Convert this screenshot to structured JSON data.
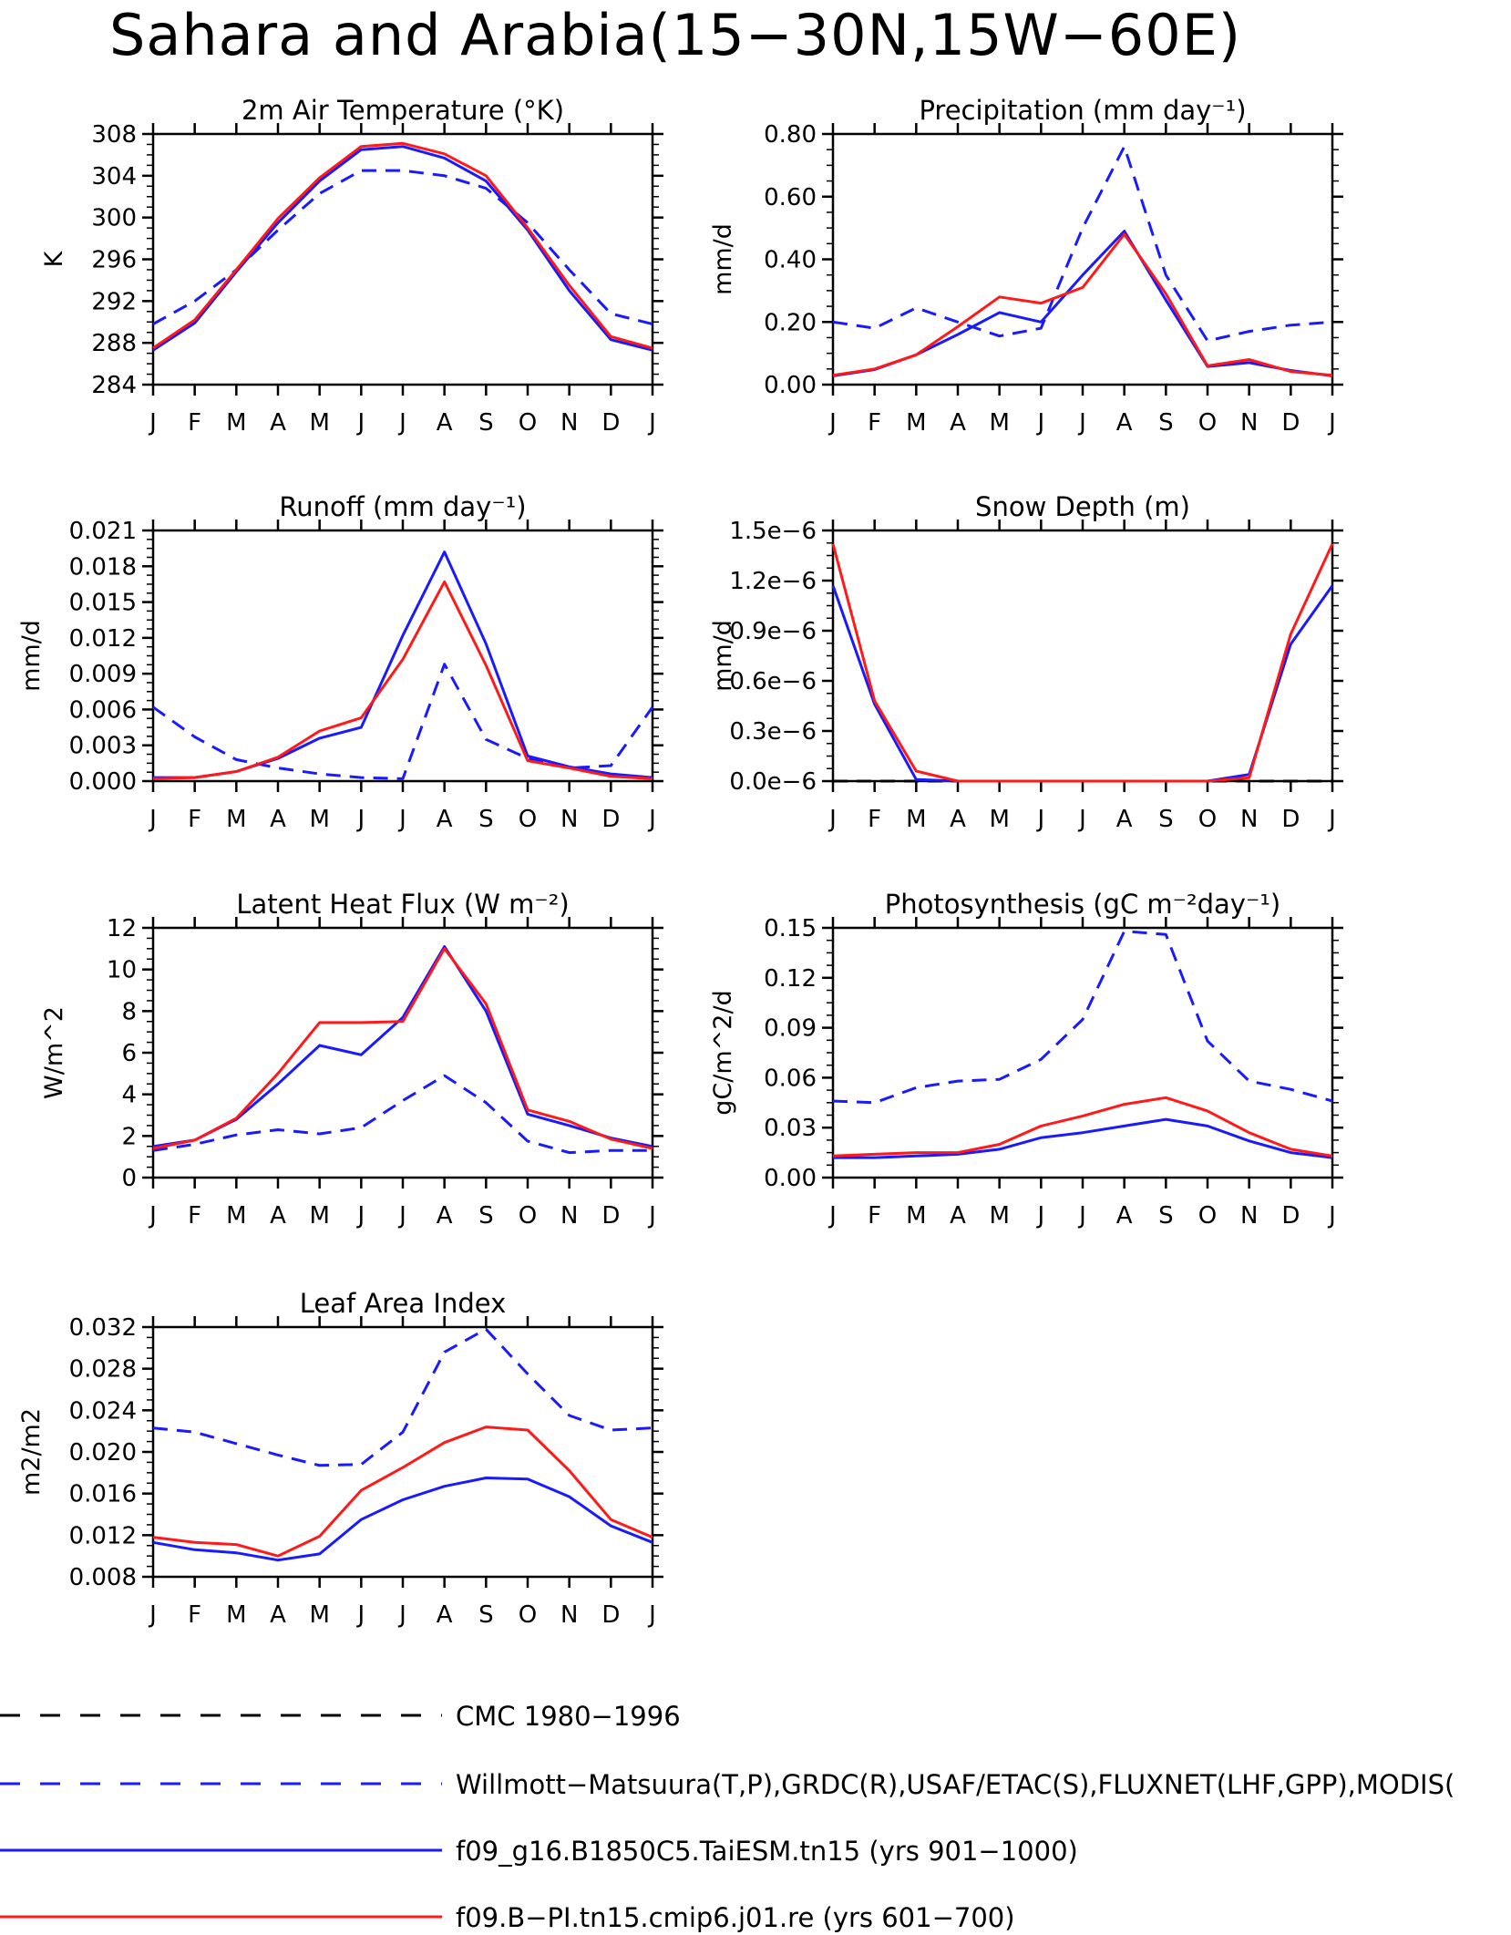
{
  "title": "Sahara and Arabia(15−30N,15W−60E)",
  "colors": {
    "obs": "#1a1aff",
    "model1": "#1a1aff",
    "model2": "#ff1a1a",
    "cmc": "#000000"
  },
  "legend": [
    {
      "label": "CMC 1980−1996",
      "color": "#000000",
      "dashed": true
    },
    {
      "label": "Willmott−Matsuura(T,P),GRDC(R),USAF/ETAC(S),FLUXNET(LHF,GPP),MODIS(",
      "color": "#1a1aff",
      "dashed": true
    },
    {
      "label": "f09_g16.B1850C5.TaiESM.tn15 (yrs 901−1000)",
      "color": "#1a1aff",
      "dashed": false
    },
    {
      "label": "f09.B−PI.tn15.cmip6.j01.re (yrs 601−700)",
      "color": "#ff1a1a",
      "dashed": false
    }
  ],
  "chart_data": [
    {
      "type": "line",
      "title": "2m Air Temperature (°K)",
      "ylabel": "K",
      "x": [
        "J",
        "F",
        "M",
        "A",
        "M",
        "J",
        "J",
        "A",
        "S",
        "O",
        "N",
        "D",
        "J"
      ],
      "ylim": [
        284,
        308
      ],
      "yticks": [
        "284",
        "288",
        "292",
        "296",
        "300",
        "304",
        "308"
      ],
      "series": [
        {
          "role": "obs",
          "values": [
            289.8,
            292.0,
            295.0,
            298.8,
            302.3,
            304.5,
            304.5,
            304.0,
            302.8,
            299.5,
            295.0,
            290.8,
            289.8
          ]
        },
        {
          "role": "model1",
          "values": [
            287.3,
            289.9,
            294.8,
            299.5,
            303.5,
            306.5,
            306.8,
            305.7,
            303.5,
            298.8,
            293.0,
            288.3,
            287.3
          ]
        },
        {
          "role": "model2",
          "values": [
            287.5,
            290.2,
            295.0,
            299.9,
            303.8,
            306.8,
            307.1,
            306.1,
            304.0,
            299.0,
            293.5,
            288.6,
            287.5
          ]
        }
      ]
    },
    {
      "type": "line",
      "title": "Precipitation (mm day⁻¹)",
      "ylabel": "mm/d",
      "x": [
        "J",
        "F",
        "M",
        "A",
        "M",
        "J",
        "J",
        "A",
        "S",
        "O",
        "N",
        "D",
        "J"
      ],
      "ylim": [
        0,
        0.8
      ],
      "yticks": [
        "0.00",
        "0.20",
        "0.40",
        "0.60",
        "0.80"
      ],
      "series": [
        {
          "role": "obs",
          "values": [
            0.2,
            0.18,
            0.245,
            0.2,
            0.155,
            0.18,
            0.5,
            0.76,
            0.35,
            0.14,
            0.17,
            0.19,
            0.2
          ]
        },
        {
          "role": "model1",
          "values": [
            0.028,
            0.048,
            0.095,
            0.16,
            0.23,
            0.2,
            0.35,
            0.49,
            0.27,
            0.058,
            0.07,
            0.045,
            0.028
          ]
        },
        {
          "role": "model2",
          "values": [
            0.03,
            0.05,
            0.095,
            0.185,
            0.28,
            0.26,
            0.31,
            0.48,
            0.29,
            0.06,
            0.08,
            0.042,
            0.03
          ]
        }
      ]
    },
    {
      "type": "line",
      "title": "Runoff (mm day⁻¹)",
      "ylabel": "mm/d",
      "x": [
        "J",
        "F",
        "M",
        "A",
        "M",
        "J",
        "J",
        "A",
        "S",
        "O",
        "N",
        "D",
        "J"
      ],
      "ylim": [
        0,
        0.021
      ],
      "yticks": [
        "0.000",
        "0.003",
        "0.006",
        "0.009",
        "0.012",
        "0.015",
        "0.018",
        "0.021"
      ],
      "series": [
        {
          "role": "obs",
          "values": [
            0.0062,
            0.0037,
            0.0018,
            0.0011,
            0.0006,
            0.0003,
            0.0002,
            0.0098,
            0.0035,
            0.0019,
            0.0011,
            0.0013,
            0.0062
          ]
        },
        {
          "role": "model1",
          "values": [
            0.0003,
            0.0003,
            0.0008,
            0.0019,
            0.0036,
            0.0045,
            0.0122,
            0.0192,
            0.0115,
            0.0021,
            0.0012,
            0.0006,
            0.0003
          ]
        },
        {
          "role": "model2",
          "values": [
            0.0002,
            0.0003,
            0.0008,
            0.002,
            0.0042,
            0.0053,
            0.0102,
            0.0167,
            0.0097,
            0.0017,
            0.0011,
            0.0004,
            0.0002
          ]
        }
      ]
    },
    {
      "type": "line",
      "title": "Snow Depth (m)",
      "ylabel": "mm/d",
      "x": [
        "J",
        "F",
        "M",
        "A",
        "M",
        "J",
        "J",
        "A",
        "S",
        "O",
        "N",
        "D",
        "J"
      ],
      "ylim": [
        0,
        1.5
      ],
      "yticks": [
        "0.0e−6",
        "0.3e−6",
        "0.6e−6",
        "0.9e−6",
        "1.2e−6",
        "1.5e−6"
      ],
      "series": [
        {
          "role": "cmc",
          "values": [
            0,
            0,
            0,
            0,
            0,
            0,
            0,
            0,
            0,
            0,
            0,
            0,
            0
          ]
        },
        {
          "role": "model1",
          "values": [
            1.17,
            0.46,
            0.01,
            0,
            0,
            0,
            0,
            0,
            0,
            0,
            0.04,
            0.82,
            1.17
          ]
        },
        {
          "role": "model2",
          "values": [
            1.42,
            0.48,
            0.06,
            0,
            0,
            0,
            0,
            0,
            0,
            0,
            0.02,
            0.88,
            1.42
          ]
        }
      ]
    },
    {
      "type": "line",
      "title": "Latent Heat Flux (W m⁻²)",
      "ylabel": "W/m^2",
      "x": [
        "J",
        "F",
        "M",
        "A",
        "M",
        "J",
        "J",
        "A",
        "S",
        "O",
        "N",
        "D",
        "J"
      ],
      "ylim": [
        0,
        12
      ],
      "yticks": [
        "0",
        "2",
        "4",
        "6",
        "8",
        "10",
        "12"
      ],
      "series": [
        {
          "role": "obs",
          "values": [
            1.3,
            1.6,
            2.05,
            2.3,
            2.1,
            2.4,
            3.7,
            4.9,
            3.6,
            1.75,
            1.2,
            1.3,
            1.3
          ]
        },
        {
          "role": "model1",
          "values": [
            1.5,
            1.8,
            2.8,
            4.5,
            6.35,
            5.9,
            7.7,
            11.1,
            8.0,
            3.05,
            2.5,
            1.9,
            1.5
          ]
        },
        {
          "role": "model2",
          "values": [
            1.4,
            1.8,
            2.85,
            5.0,
            7.45,
            7.45,
            7.5,
            11.0,
            8.35,
            3.25,
            2.7,
            1.85,
            1.4
          ]
        }
      ]
    },
    {
      "type": "line",
      "title": "Photosynthesis (gC m⁻²day⁻¹)",
      "ylabel": "gC/m^2/d",
      "x": [
        "J",
        "F",
        "M",
        "A",
        "M",
        "J",
        "J",
        "A",
        "S",
        "O",
        "N",
        "D",
        "J"
      ],
      "ylim": [
        0,
        0.15
      ],
      "yticks": [
        "0.00",
        "0.03",
        "0.06",
        "0.09",
        "0.12",
        "0.15"
      ],
      "series": [
        {
          "role": "obs",
          "values": [
            0.046,
            0.045,
            0.054,
            0.058,
            0.059,
            0.071,
            0.095,
            0.148,
            0.146,
            0.082,
            0.058,
            0.053,
            0.046
          ]
        },
        {
          "role": "model1",
          "values": [
            0.012,
            0.012,
            0.013,
            0.014,
            0.017,
            0.024,
            0.027,
            0.031,
            0.035,
            0.031,
            0.022,
            0.015,
            0.012
          ]
        },
        {
          "role": "model2",
          "values": [
            0.013,
            0.014,
            0.015,
            0.015,
            0.02,
            0.031,
            0.037,
            0.044,
            0.048,
            0.04,
            0.027,
            0.017,
            0.013
          ]
        }
      ]
    },
    {
      "type": "line",
      "title": "Leaf Area Index",
      "ylabel": "m2/m2",
      "x": [
        "J",
        "F",
        "M",
        "A",
        "M",
        "J",
        "J",
        "A",
        "S",
        "O",
        "N",
        "D",
        "J"
      ],
      "ylim": [
        0.008,
        0.032
      ],
      "yticks": [
        "0.008",
        "0.012",
        "0.016",
        "0.020",
        "0.024",
        "0.028",
        "0.032"
      ],
      "series": [
        {
          "role": "obs",
          "values": [
            0.0223,
            0.0219,
            0.0208,
            0.0197,
            0.0187,
            0.0188,
            0.0219,
            0.0296,
            0.0318,
            0.0275,
            0.0235,
            0.0221,
            0.0223
          ]
        },
        {
          "role": "model1",
          "values": [
            0.0113,
            0.0106,
            0.0103,
            0.0096,
            0.0102,
            0.0135,
            0.0154,
            0.0167,
            0.0175,
            0.0174,
            0.0157,
            0.0129,
            0.0113
          ]
        },
        {
          "role": "model2",
          "values": [
            0.0118,
            0.0113,
            0.0111,
            0.01,
            0.0119,
            0.0163,
            0.0185,
            0.0209,
            0.0224,
            0.0221,
            0.0182,
            0.0135,
            0.0118
          ]
        }
      ]
    }
  ]
}
